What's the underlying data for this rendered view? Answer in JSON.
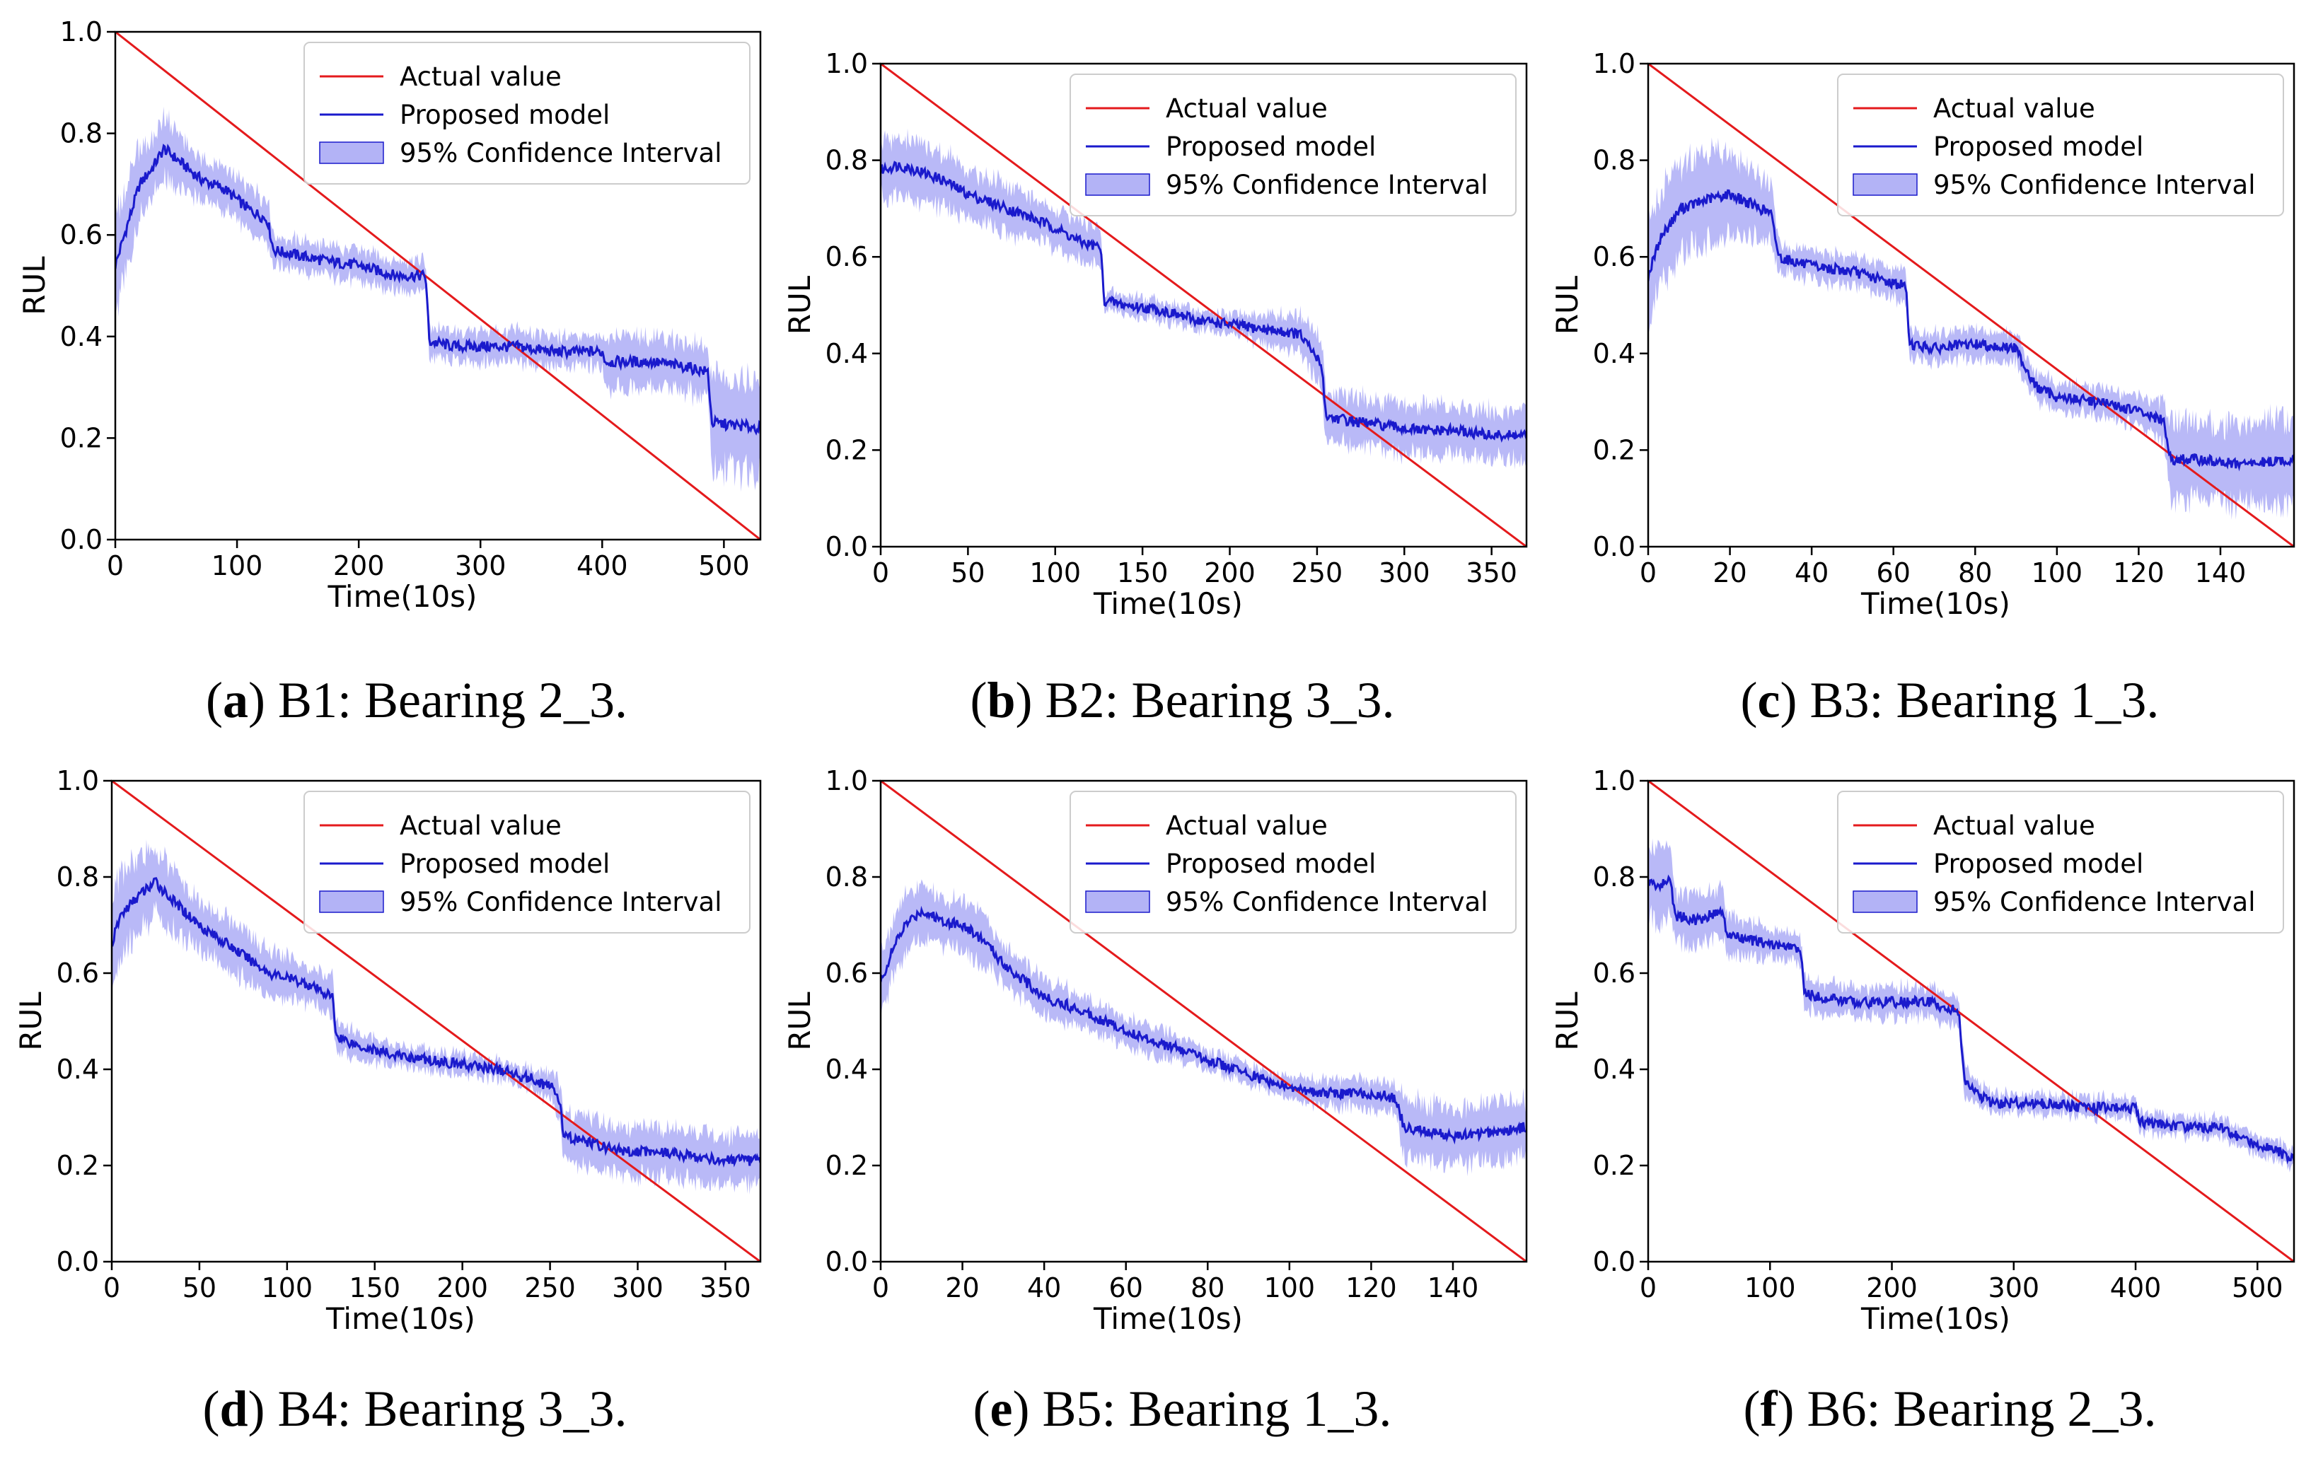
{
  "figure": {
    "panels": [
      {
        "letter": "a",
        "caption": "B1: Bearing 2_3."
      },
      {
        "letter": "b",
        "caption": "B2: Bearing 3_3."
      },
      {
        "letter": "c",
        "caption": "B3: Bearing 1_3."
      },
      {
        "letter": "d",
        "caption": "B4: Bearing 3_3."
      },
      {
        "letter": "e",
        "caption": "B5: Bearing 1_3."
      },
      {
        "letter": "f",
        "caption": "B6: Bearing 2_3."
      }
    ]
  },
  "colors": {
    "actual": "#e41a1c",
    "model": "#1a1acc",
    "band": "#8080f0"
  },
  "chart_data": [
    {
      "type": "line",
      "xlabel": "Time(10s)",
      "ylabel": "RUL",
      "xlim": [
        0,
        530
      ],
      "ylim": [
        0,
        1
      ],
      "xticks": [
        0,
        100,
        200,
        300,
        400,
        500
      ],
      "yticks": [
        "0.0",
        "0.2",
        "0.4",
        "0.6",
        "0.8",
        "1.0"
      ],
      "legend": {
        "position": "top-right",
        "entries": [
          "Actual value",
          "Proposed model",
          "95% Confidence Interval"
        ]
      },
      "series": [
        {
          "name": "Actual value",
          "x": [
            0,
            530
          ],
          "y": [
            1.0,
            0.0
          ]
        },
        {
          "name": "Proposed model",
          "x": [
            0,
            10,
            20,
            30,
            40,
            55,
            70,
            90,
            110,
            125,
            130,
            150,
            170,
            200,
            230,
            255,
            258,
            280,
            300,
            330,
            360,
            400,
            403,
            440,
            470,
            487,
            490,
            530
          ],
          "y": [
            0.54,
            0.62,
            0.7,
            0.73,
            0.77,
            0.74,
            0.71,
            0.69,
            0.65,
            0.63,
            0.57,
            0.56,
            0.55,
            0.54,
            0.52,
            0.52,
            0.39,
            0.38,
            0.38,
            0.38,
            0.37,
            0.37,
            0.35,
            0.35,
            0.34,
            0.33,
            0.23,
            0.22
          ],
          "ci_halfwidth": [
            0.1,
            0.08,
            0.07,
            0.06,
            0.06,
            0.05,
            0.04,
            0.04,
            0.04,
            0.04,
            0.03,
            0.03,
            0.03,
            0.03,
            0.03,
            0.03,
            0.03,
            0.03,
            0.03,
            0.03,
            0.03,
            0.03,
            0.05,
            0.05,
            0.05,
            0.05,
            0.09,
            0.09
          ]
        }
      ]
    },
    {
      "type": "line",
      "xlabel": "Time(10s)",
      "ylabel": "RUL",
      "xlim": [
        0,
        370
      ],
      "ylim": [
        0,
        1
      ],
      "xticks": [
        0,
        50,
        100,
        150,
        200,
        250,
        300,
        350
      ],
      "yticks": [
        "0.0",
        "0.2",
        "0.4",
        "0.6",
        "0.8",
        "1.0"
      ],
      "legend": {
        "position": "top-right",
        "entries": [
          "Actual value",
          "Proposed model",
          "95% Confidence Interval"
        ]
      },
      "series": [
        {
          "name": "Actual value",
          "x": [
            0,
            370
          ],
          "y": [
            1.0,
            0.0
          ]
        },
        {
          "name": "Proposed model",
          "x": [
            0,
            10,
            20,
            35,
            50,
            65,
            80,
            100,
            115,
            126,
            128,
            140,
            160,
            180,
            200,
            220,
            240,
            250,
            253,
            255,
            270,
            290,
            310,
            330,
            350,
            370
          ],
          "y": [
            0.78,
            0.79,
            0.78,
            0.76,
            0.73,
            0.71,
            0.69,
            0.66,
            0.63,
            0.62,
            0.51,
            0.5,
            0.49,
            0.47,
            0.46,
            0.45,
            0.44,
            0.39,
            0.37,
            0.27,
            0.26,
            0.25,
            0.24,
            0.24,
            0.23,
            0.23
          ],
          "ci_halfwidth": [
            0.06,
            0.06,
            0.06,
            0.06,
            0.05,
            0.05,
            0.05,
            0.04,
            0.04,
            0.04,
            0.02,
            0.02,
            0.02,
            0.02,
            0.02,
            0.03,
            0.04,
            0.05,
            0.05,
            0.05,
            0.05,
            0.05,
            0.05,
            0.05,
            0.05,
            0.05
          ]
        }
      ]
    },
    {
      "type": "line",
      "xlabel": "Time(10s)",
      "ylabel": "RUL",
      "xlim": [
        0,
        158
      ],
      "ylim": [
        0,
        1
      ],
      "xticks": [
        0,
        20,
        40,
        60,
        80,
        100,
        120,
        140
      ],
      "yticks": [
        "0.0",
        "0.2",
        "0.4",
        "0.6",
        "0.8",
        "1.0"
      ],
      "legend": {
        "position": "top-right",
        "entries": [
          "Actual value",
          "Proposed model",
          "95% Confidence Interval"
        ]
      },
      "series": [
        {
          "name": "Actual value",
          "x": [
            0,
            158
          ],
          "y": [
            1.0,
            0.0
          ]
        },
        {
          "name": "Proposed model",
          "x": [
            0,
            3,
            8,
            15,
            20,
            25,
            30,
            32,
            40,
            50,
            58,
            63,
            64,
            70,
            80,
            90,
            93,
            95,
            100,
            110,
            120,
            126,
            128,
            135,
            145,
            158
          ],
          "y": [
            0.56,
            0.64,
            0.7,
            0.72,
            0.73,
            0.71,
            0.69,
            0.6,
            0.58,
            0.57,
            0.55,
            0.54,
            0.42,
            0.41,
            0.42,
            0.41,
            0.36,
            0.33,
            0.31,
            0.3,
            0.28,
            0.26,
            0.18,
            0.18,
            0.17,
            0.18
          ],
          "ci_halfwidth": [
            0.1,
            0.1,
            0.09,
            0.09,
            0.08,
            0.07,
            0.06,
            0.03,
            0.03,
            0.03,
            0.03,
            0.03,
            0.03,
            0.03,
            0.03,
            0.03,
            0.03,
            0.03,
            0.03,
            0.03,
            0.03,
            0.04,
            0.08,
            0.08,
            0.08,
            0.09
          ]
        }
      ]
    },
    {
      "type": "line",
      "xlabel": "Time(10s)",
      "ylabel": "RUL",
      "xlim": [
        0,
        370
      ],
      "ylim": [
        0,
        1
      ],
      "xticks": [
        0,
        50,
        100,
        150,
        200,
        250,
        300,
        350
      ],
      "yticks": [
        "0.0",
        "0.2",
        "0.4",
        "0.6",
        "0.8",
        "1.0"
      ],
      "legend": {
        "position": "top-right",
        "entries": [
          "Actual value",
          "Proposed model",
          "95% Confidence Interval"
        ]
      },
      "series": [
        {
          "name": "Actual value",
          "x": [
            0,
            370
          ],
          "y": [
            1.0,
            0.0
          ]
        },
        {
          "name": "Proposed model",
          "x": [
            0,
            5,
            15,
            25,
            35,
            50,
            70,
            90,
            110,
            126,
            128,
            140,
            160,
            180,
            200,
            220,
            240,
            252,
            255,
            258,
            270,
            290,
            310,
            330,
            350,
            370
          ],
          "y": [
            0.66,
            0.72,
            0.76,
            0.79,
            0.75,
            0.7,
            0.65,
            0.6,
            0.58,
            0.55,
            0.47,
            0.45,
            0.43,
            0.42,
            0.41,
            0.4,
            0.38,
            0.36,
            0.34,
            0.26,
            0.25,
            0.23,
            0.23,
            0.22,
            0.21,
            0.21
          ],
          "ci_halfwidth": [
            0.1,
            0.09,
            0.08,
            0.07,
            0.06,
            0.05,
            0.05,
            0.05,
            0.04,
            0.04,
            0.03,
            0.03,
            0.02,
            0.02,
            0.02,
            0.02,
            0.02,
            0.03,
            0.04,
            0.05,
            0.05,
            0.05,
            0.05,
            0.05,
            0.05,
            0.05
          ]
        }
      ]
    },
    {
      "type": "line",
      "xlabel": "Time(10s)",
      "ylabel": "RUL",
      "xlim": [
        0,
        158
      ],
      "ylim": [
        0,
        1
      ],
      "xticks": [
        0,
        20,
        40,
        60,
        80,
        100,
        120,
        140
      ],
      "yticks": [
        "0.0",
        "0.2",
        "0.4",
        "0.6",
        "0.8",
        "1.0"
      ],
      "legend": {
        "position": "top-right",
        "entries": [
          "Actual value",
          "Proposed model",
          "95% Confidence Interval"
        ]
      },
      "series": [
        {
          "name": "Actual value",
          "x": [
            0,
            158
          ],
          "y": [
            1.0,
            0.0
          ]
        },
        {
          "name": "Proposed model",
          "x": [
            0,
            3,
            6,
            10,
            15,
            20,
            25,
            30,
            40,
            50,
            60,
            70,
            80,
            90,
            100,
            110,
            120,
            126,
            128,
            140,
            150,
            158
          ],
          "y": [
            0.58,
            0.65,
            0.7,
            0.73,
            0.71,
            0.7,
            0.67,
            0.62,
            0.55,
            0.52,
            0.48,
            0.45,
            0.42,
            0.39,
            0.36,
            0.35,
            0.35,
            0.34,
            0.28,
            0.26,
            0.27,
            0.28
          ],
          "ci_halfwidth": [
            0.06,
            0.06,
            0.06,
            0.05,
            0.05,
            0.05,
            0.05,
            0.04,
            0.04,
            0.03,
            0.03,
            0.03,
            0.02,
            0.02,
            0.02,
            0.03,
            0.03,
            0.03,
            0.06,
            0.06,
            0.06,
            0.06
          ]
        }
      ]
    },
    {
      "type": "line",
      "xlabel": "Time(10s)",
      "ylabel": "RUL",
      "xlim": [
        0,
        530
      ],
      "ylim": [
        0,
        1
      ],
      "xticks": [
        0,
        100,
        200,
        300,
        400,
        500
      ],
      "yticks": [
        "0.0",
        "0.2",
        "0.4",
        "0.6",
        "0.8",
        "1.0"
      ],
      "legend": {
        "position": "top-right",
        "entries": [
          "Actual value",
          "Proposed model",
          "95% Confidence Interval"
        ]
      },
      "series": [
        {
          "name": "Actual value",
          "x": [
            0,
            530
          ],
          "y": [
            1.0,
            0.0
          ]
        },
        {
          "name": "Proposed model",
          "x": [
            0,
            10,
            18,
            22,
            40,
            60,
            65,
            80,
            100,
            125,
            128,
            140,
            170,
            200,
            230,
            255,
            257,
            260,
            280,
            320,
            360,
            400,
            403,
            440,
            470,
            490,
            510,
            530
          ],
          "y": [
            0.79,
            0.78,
            0.8,
            0.72,
            0.71,
            0.73,
            0.68,
            0.67,
            0.66,
            0.65,
            0.56,
            0.55,
            0.54,
            0.54,
            0.54,
            0.52,
            0.45,
            0.37,
            0.33,
            0.33,
            0.32,
            0.32,
            0.29,
            0.28,
            0.28,
            0.25,
            0.24,
            0.21
          ],
          "ci_halfwidth": [
            0.07,
            0.07,
            0.07,
            0.05,
            0.05,
            0.05,
            0.04,
            0.04,
            0.03,
            0.03,
            0.03,
            0.03,
            0.03,
            0.03,
            0.03,
            0.03,
            0.04,
            0.03,
            0.02,
            0.02,
            0.02,
            0.02,
            0.02,
            0.02,
            0.02,
            0.02,
            0.02,
            0.02
          ]
        }
      ]
    }
  ]
}
